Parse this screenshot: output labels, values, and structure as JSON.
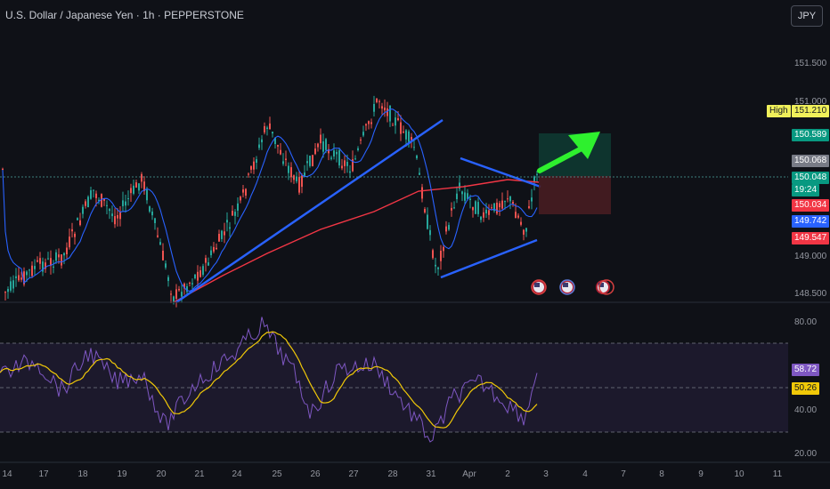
{
  "header": {
    "title": "U.S. Dollar / Japanese Yen · 1h · PEPPERSTONE",
    "currency_button": "JPY"
  },
  "price_axis": {
    "ticks": [
      "151.500",
      "151.000",
      "149.000",
      "148.500"
    ]
  },
  "rsi_axis": {
    "ticks": [
      "80.00",
      "40.00",
      "20.00"
    ]
  },
  "price_labels": {
    "high_label": "High",
    "high_value": "151.210",
    "target": "150.589",
    "last": "150.068",
    "current": "150.048",
    "countdown": "19:24",
    "stop": "150.034",
    "ma_blue": "149.742",
    "ma_red": "149.547"
  },
  "rsi_labels": {
    "rsi": "58.72",
    "rsi_ma": "50.26"
  },
  "x_axis": [
    "14",
    "17",
    "18",
    "19",
    "20",
    "21",
    "24",
    "25",
    "26",
    "27",
    "28",
    "31",
    "Apr",
    "2",
    "3",
    "4",
    "7",
    "8",
    "9",
    "10",
    "11"
  ],
  "colors": {
    "background": "#0f1117",
    "up": "#26a69a",
    "down": "#ef5350",
    "ma_blue": "#2962ff",
    "ma_red": "#f23645",
    "trendline": "#2962ff",
    "arrow": "#2ef02e",
    "rsi": "#7e57c2",
    "rsi_ma": "#f0c808",
    "high": "#f0f05a",
    "target_zone": "#0e3b33",
    "stop_zone": "#4a1d22"
  },
  "event_icons": [
    "us-flag-icon",
    "us-flag-icon",
    "us-flag-icon"
  ]
}
